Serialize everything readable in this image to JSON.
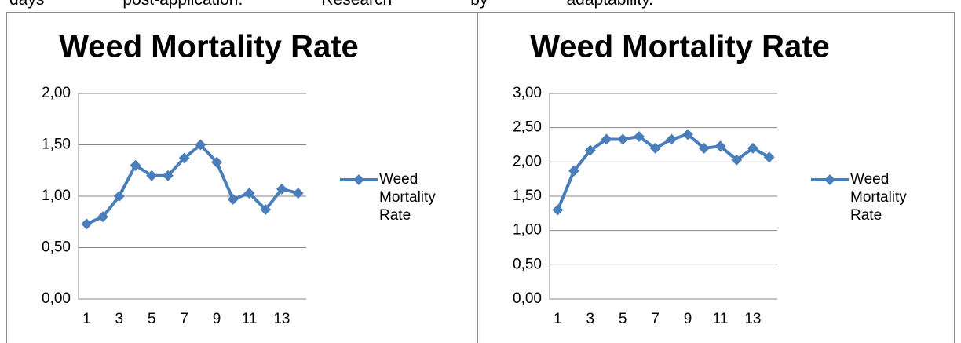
{
  "header_text": "days post-application. Research by adaptability.",
  "chart_data": [
    {
      "type": "line",
      "title": "Weed Mortality Rate",
      "categories": [
        "1",
        null,
        "3",
        null,
        "5",
        null,
        "7",
        null,
        "9",
        null,
        "11",
        null,
        "13",
        null
      ],
      "series": [
        {
          "name": "Weed Mortality Rate",
          "color": "#4a7ebb",
          "values": [
            0.73,
            0.8,
            1.0,
            1.3,
            1.2,
            1.2,
            1.37,
            1.5,
            1.33,
            0.97,
            1.03,
            0.87,
            1.07,
            1.03
          ]
        }
      ],
      "ylim": [
        0,
        2
      ],
      "yticks": [
        {
          "value": 0,
          "label": "0,00"
        },
        {
          "value": 0.5,
          "label": "0,50"
        },
        {
          "value": 1,
          "label": "1,00"
        },
        {
          "value": 1.5,
          "label": "1,50"
        },
        {
          "value": 2,
          "label": "2,00"
        }
      ],
      "grid": true,
      "legend": "right"
    },
    {
      "type": "line",
      "title": "Weed Mortality Rate",
      "categories": [
        "1",
        null,
        "3",
        null,
        "5",
        null,
        "7",
        null,
        "9",
        null,
        "11",
        null,
        "13",
        null
      ],
      "series": [
        {
          "name": "Weed Mortality Rate",
          "color": "#4a7ebb",
          "values": [
            1.3,
            1.87,
            2.17,
            2.33,
            2.33,
            2.37,
            2.2,
            2.33,
            2.4,
            2.2,
            2.23,
            2.03,
            2.2,
            2.07
          ]
        }
      ],
      "ylim": [
        0,
        3
      ],
      "yticks": [
        {
          "value": 0,
          "label": "0,00"
        },
        {
          "value": 0.5,
          "label": "0,50"
        },
        {
          "value": 1,
          "label": "1,00"
        },
        {
          "value": 1.5,
          "label": "1,50"
        },
        {
          "value": 2,
          "label": "2,00"
        },
        {
          "value": 2.5,
          "label": "2,50"
        },
        {
          "value": 3,
          "label": "3,00"
        }
      ],
      "grid": true,
      "legend": "right"
    }
  ]
}
